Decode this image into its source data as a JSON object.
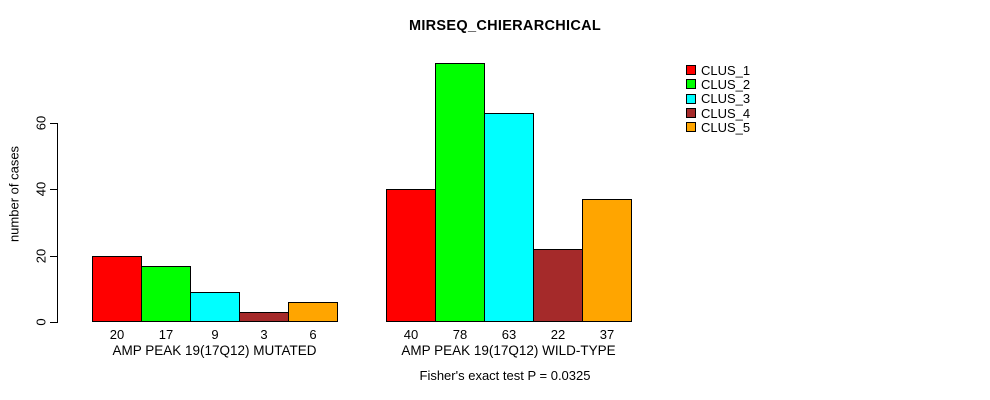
{
  "title": "MIRSEQ_CHIERARCHICAL",
  "subtitle": "Fisher's exact test P = 0.0325",
  "ylabel": "number of cases",
  "chart_data": {
    "type": "bar",
    "title": "MIRSEQ_CHIERARCHICAL",
    "xlabel": "",
    "ylabel": "number of cases",
    "annotation": "Fisher's exact test P = 0.0325",
    "grid": false,
    "legend_position": "right",
    "ylim": [
      0,
      78
    ],
    "yticks": [
      0,
      20,
      40,
      60
    ],
    "series": [
      {
        "name": "CLUS_1",
        "color": "#FF0000"
      },
      {
        "name": "CLUS_2",
        "color": "#00FF00"
      },
      {
        "name": "CLUS_3",
        "color": "#00FFFF"
      },
      {
        "name": "CLUS_4",
        "color": "#A52A2A"
      },
      {
        "name": "CLUS_5",
        "color": "#FFA500"
      }
    ],
    "groups": [
      {
        "label": "AMP PEAK 19(17Q12) MUTATED",
        "values": [
          20,
          17,
          9,
          3,
          6
        ]
      },
      {
        "label": "AMP PEAK 19(17Q12) WILD-TYPE",
        "values": [
          40,
          78,
          63,
          22,
          37
        ]
      }
    ],
    "value_labels_shown": true
  }
}
